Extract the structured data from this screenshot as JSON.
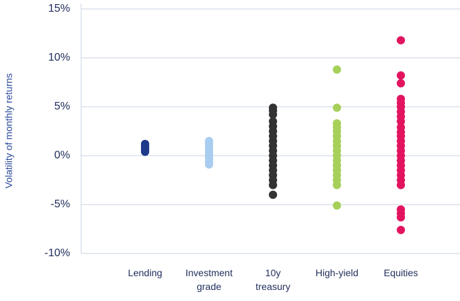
{
  "chart_data": {
    "type": "strip",
    "y_label": "Volatility of monthly returns",
    "categories": [
      "Lending",
      "Investment grade",
      "10y treasury",
      "High-yield",
      "Equities"
    ],
    "colors": [
      "#1f3a8a",
      "#a9cdf0",
      "#333333",
      "#a6d05a",
      "#e3145f"
    ],
    "points": [
      [
        1.2,
        1.0,
        0.8,
        0.6,
        0.4
      ],
      [
        1.5,
        1.2,
        0.9,
        0.6,
        0.3,
        0,
        -0.3,
        -0.6,
        -0.9
      ],
      [
        4.9,
        4.6,
        4.2,
        3.5,
        3.0,
        2.5,
        2.0,
        1.5,
        1.0,
        0.5,
        0,
        -0.5,
        -1.0,
        -1.5,
        -2.0,
        -2.5,
        -3.0,
        -4.0
      ],
      [
        8.8,
        4.9,
        3.3,
        2.9,
        2.5,
        2.0,
        1.5,
        1.0,
        0.5,
        0,
        -0.5,
        -1.0,
        -1.5,
        -2.0,
        -2.5,
        -3.0,
        -5.1
      ],
      [
        11.8,
        8.2,
        7.4,
        5.8,
        5.4,
        5.0,
        4.5,
        4.0,
        3.5,
        2.9,
        2.4,
        2.0,
        1.5,
        1.0,
        0.5,
        0,
        -0.5,
        -1.0,
        -1.5,
        -2.0,
        -2.5,
        -3.0,
        -5.5,
        -5.9,
        -6.3,
        -7.6
      ]
    ],
    "ylim": [
      -10,
      15
    ],
    "yticks": [
      {
        "value": -10,
        "label": "-10%"
      },
      {
        "value": -5,
        "label": "-5%"
      },
      {
        "value": 0,
        "label": "0%"
      },
      {
        "value": 5,
        "label": "5%"
      },
      {
        "value": 10,
        "label": "10%"
      },
      {
        "value": 15,
        "label": "15%"
      }
    ],
    "grid": true
  }
}
